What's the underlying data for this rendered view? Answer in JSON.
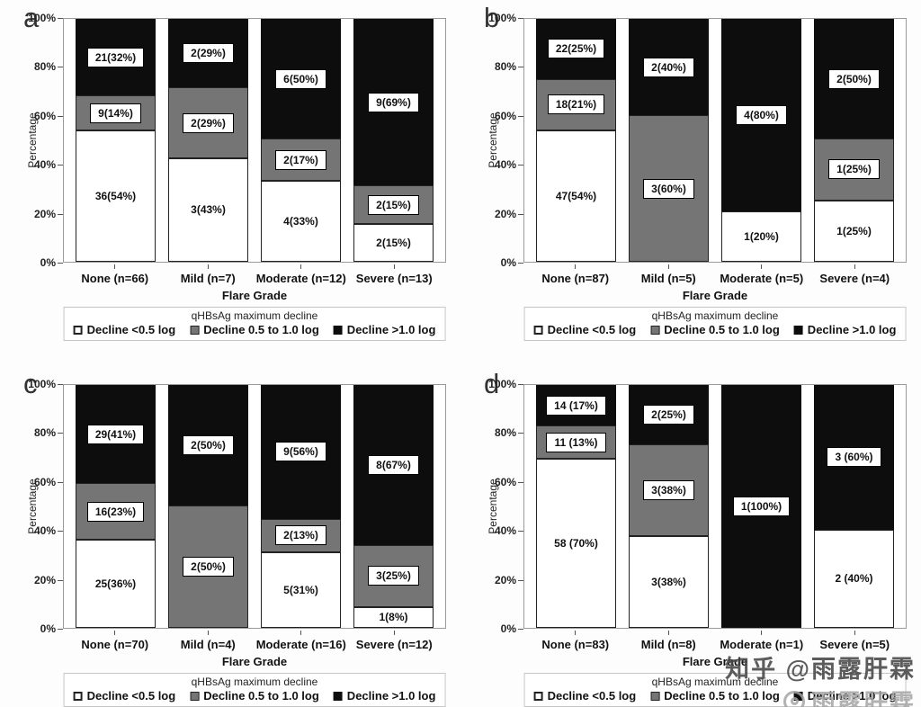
{
  "figure": {
    "ylabel": "Percentage",
    "xlabel": "Flare Grade",
    "yticks": [
      "0%",
      "20%",
      "40%",
      "60%",
      "80%",
      "100%"
    ],
    "legend": {
      "title": "qHBsAg maximum decline",
      "entries": [
        "Decline <0.5 log",
        "Decline 0.5 to 1.0 log",
        "Decline >1.0 log"
      ]
    },
    "colors": {
      "decline_lt_05": "#ffffff",
      "decline_05_to_10": "#757575",
      "decline_gt_10": "#0d0d0d"
    }
  },
  "watermark": {
    "line1": "知乎 @雨露肝霖",
    "line2": "雨露肝霖"
  },
  "chart_data": [
    {
      "type": "bar",
      "panel": "a",
      "stacked": true,
      "ylim": [
        0,
        100
      ],
      "grid": false,
      "legend_position": "bottom",
      "xlabel": "Flare Grade",
      "ylabel": "Percentage",
      "categories": [
        "None (n=66)",
        "Mild (n=7)",
        "Moderate (n=12)",
        "Severe (n=13)"
      ],
      "series": [
        {
          "name": "Decline <0.5 log",
          "values": [
            54,
            43,
            33,
            15
          ],
          "counts": [
            36,
            3,
            4,
            2
          ],
          "labels": [
            "36(54%)",
            "3(43%)",
            "4(33%)",
            "2(15%)"
          ]
        },
        {
          "name": "Decline 0.5 to 1.0 log",
          "values": [
            14,
            29,
            17,
            15
          ],
          "counts": [
            9,
            2,
            2,
            2
          ],
          "labels": [
            "9(14%)",
            "2(29%)",
            "2(17%)",
            "2(15%)"
          ]
        },
        {
          "name": "Decline >1.0 log",
          "values": [
            32,
            29,
            50,
            69
          ],
          "counts": [
            21,
            2,
            6,
            9
          ],
          "labels": [
            "21(32%)",
            "2(29%)",
            "6(50%)",
            "9(69%)"
          ]
        }
      ]
    },
    {
      "type": "bar",
      "panel": "b",
      "stacked": true,
      "ylim": [
        0,
        100
      ],
      "grid": false,
      "legend_position": "bottom",
      "xlabel": "Flare Grade",
      "ylabel": "Percentage",
      "categories": [
        "None (n=87)",
        "Mild (n=5)",
        "Moderate (n=5)",
        "Severe (n=4)"
      ],
      "series": [
        {
          "name": "Decline <0.5 log",
          "values": [
            54,
            0,
            20,
            25
          ],
          "counts": [
            47,
            0,
            1,
            1
          ],
          "labels": [
            "47(54%)",
            "",
            "1(20%)",
            "1(25%)"
          ]
        },
        {
          "name": "Decline 0.5 to 1.0 log",
          "values": [
            21,
            60,
            0,
            25
          ],
          "counts": [
            18,
            3,
            0,
            1
          ],
          "labels": [
            "18(21%)",
            "3(60%)",
            "",
            "1(25%)"
          ]
        },
        {
          "name": "Decline >1.0 log",
          "values": [
            25,
            40,
            80,
            50
          ],
          "counts": [
            22,
            2,
            4,
            2
          ],
          "labels": [
            "22(25%)",
            "2(40%)",
            "4(80%)",
            "2(50%)"
          ]
        }
      ]
    },
    {
      "type": "bar",
      "panel": "c",
      "stacked": true,
      "ylim": [
        0,
        100
      ],
      "grid": false,
      "legend_position": "bottom",
      "xlabel": "Flare Grade",
      "ylabel": "Percentage",
      "categories": [
        "None (n=70)",
        "Mild (n=4)",
        "Moderate (n=16)",
        "Severe (n=12)"
      ],
      "series": [
        {
          "name": "Decline <0.5 log",
          "values": [
            36,
            0,
            31,
            8
          ],
          "counts": [
            25,
            0,
            5,
            1
          ],
          "labels": [
            "25(36%)",
            "",
            "5(31%)",
            "1(8%)"
          ]
        },
        {
          "name": "Decline 0.5 to 1.0 log",
          "values": [
            23,
            50,
            13,
            25
          ],
          "counts": [
            16,
            2,
            2,
            3
          ],
          "labels": [
            "16(23%)",
            "2(50%)",
            "2(13%)",
            "3(25%)"
          ]
        },
        {
          "name": "Decline >1.0 log",
          "values": [
            41,
            50,
            56,
            67
          ],
          "counts": [
            29,
            2,
            9,
            8
          ],
          "labels": [
            "29(41%)",
            "2(50%)",
            "9(56%)",
            "8(67%)"
          ]
        }
      ]
    },
    {
      "type": "bar",
      "panel": "d",
      "stacked": true,
      "ylim": [
        0,
        100
      ],
      "grid": false,
      "legend_position": "bottom",
      "xlabel": "Flare Grade",
      "ylabel": "Percentage",
      "categories": [
        "None (n=83)",
        "Mild (n=8)",
        "Moderate (n=1)",
        "Severe (n=5)"
      ],
      "series": [
        {
          "name": "Decline <0.5 log",
          "values": [
            70,
            38,
            0,
            40
          ],
          "counts": [
            58,
            3,
            0,
            2
          ],
          "labels": [
            "58 (70%)",
            "3(38%)",
            "",
            "2 (40%)"
          ]
        },
        {
          "name": "Decline 0.5 to 1.0 log",
          "values": [
            13,
            38,
            0,
            0
          ],
          "counts": [
            11,
            3,
            0,
            0
          ],
          "labels": [
            "11 (13%)",
            "3(38%)",
            "",
            ""
          ]
        },
        {
          "name": "Decline >1.0 log",
          "values": [
            17,
            25,
            100,
            60
          ],
          "counts": [
            14,
            2,
            1,
            3
          ],
          "labels": [
            "14 (17%)",
            "2(25%)",
            "1(100%)",
            "3 (60%)"
          ]
        }
      ]
    }
  ]
}
